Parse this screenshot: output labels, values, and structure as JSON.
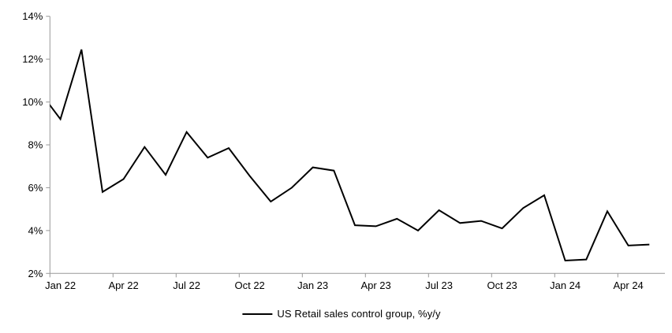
{
  "chart_data": {
    "type": "line",
    "title": "",
    "series": [
      {
        "name": "US Retail sales control group, %y/y",
        "color": "#000000",
        "line_width": 2,
        "start_offset": -1,
        "points": [
          {
            "x": "Dec 21",
            "y": 10.5,
            "lead_in_clipped": true
          },
          {
            "x": "Jan 22",
            "y": 9.2
          },
          {
            "x": "Feb 22",
            "y": 12.45
          },
          {
            "x": "Mar 22",
            "y": 5.8
          },
          {
            "x": "Apr 22",
            "y": 6.4
          },
          {
            "x": "May 22",
            "y": 7.9
          },
          {
            "x": "Jun 22",
            "y": 6.6
          },
          {
            "x": "Jul 22",
            "y": 8.6
          },
          {
            "x": "Aug 22",
            "y": 7.4
          },
          {
            "x": "Sep 22",
            "y": 7.85
          },
          {
            "x": "Oct 22",
            "y": 6.55
          },
          {
            "x": "Nov 22",
            "y": 5.35
          },
          {
            "x": "Dec 22",
            "y": 6.0
          },
          {
            "x": "Jan 23",
            "y": 6.95
          },
          {
            "x": "Feb 23",
            "y": 6.8
          },
          {
            "x": "Mar 23",
            "y": 4.25
          },
          {
            "x": "Apr 23",
            "y": 4.2
          },
          {
            "x": "May 23",
            "y": 4.55
          },
          {
            "x": "Jun 23",
            "y": 4.0
          },
          {
            "x": "Jul 23",
            "y": 4.95
          },
          {
            "x": "Aug 23",
            "y": 4.35
          },
          {
            "x": "Sep 23",
            "y": 4.45
          },
          {
            "x": "Oct 23",
            "y": 4.1
          },
          {
            "x": "Nov 23",
            "y": 5.05
          },
          {
            "x": "Dec 23",
            "y": 5.65
          },
          {
            "x": "Jan 24",
            "y": 2.6
          },
          {
            "x": "Feb 24",
            "y": 2.65
          },
          {
            "x": "Mar 24",
            "y": 4.9
          },
          {
            "x": "Apr 24",
            "y": 3.3
          },
          {
            "x": "May 24",
            "y": 3.35
          }
        ]
      }
    ],
    "x_axis": {
      "tick_labels": [
        "Jan 22",
        "Apr 22",
        "Jul 22",
        "Oct 22",
        "Jan 23",
        "Apr 23",
        "Jul 23",
        "Oct 23",
        "Jan 24",
        "Apr 24"
      ],
      "months_per_tick": 3,
      "visible_categories": 29
    },
    "y_axis": {
      "tick_labels": [
        "2%",
        "4%",
        "6%",
        "8%",
        "10%",
        "12%",
        "14%"
      ],
      "min": 2,
      "max": 14,
      "step": 2
    },
    "legend": {
      "position": "bottom-center",
      "label": "US Retail sales control group, %y/y"
    },
    "grid": false,
    "colors": {
      "series": "#000000",
      "axis": "#999999",
      "text": "#000000",
      "background": "#ffffff"
    }
  }
}
